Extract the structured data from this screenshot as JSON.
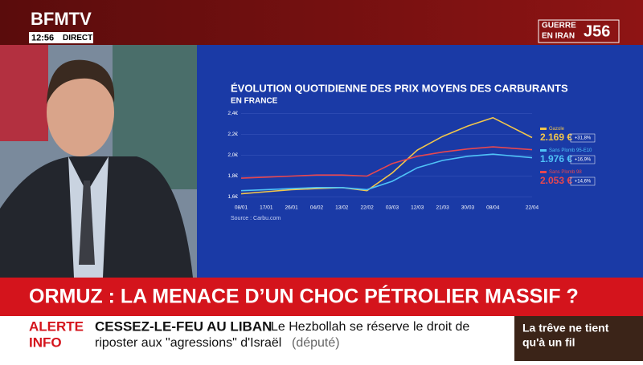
{
  "broadcast": {
    "channel": "BFMTV",
    "time": "12:56",
    "live": "DIRECT",
    "tag_line1": "GUERRE",
    "tag_line2": "EN IRAN",
    "tag_day": "J56",
    "headline": "ORMUZ : LA MENACE D’UN CHOC PÉTROLIER MASSIF ?",
    "alert_line1": "ALERTE",
    "alert_line2": "INFO",
    "ticker_title": "CESSEZ-LE-FEU AU LIBAN",
    "ticker_text1": "Le Hezbollah se réserve le droit de",
    "ticker_text2": "riposter aux \"agressions\" d'Israël",
    "ticker_source": "(député)",
    "promo_line1": "La trêve ne tient",
    "promo_line2": "qu'à un fil"
  },
  "chart_data": {
    "type": "line",
    "title": "ÉVOLUTION QUOTIDIENNE DES PRIX MOYENS DES CARBURANTS",
    "subtitle": "EN FRANCE",
    "source": "Source : Carbu.com",
    "x": [
      "08/01",
      "17/01",
      "26/01",
      "04/02",
      "13/02",
      "22/02",
      "03/03",
      "12/03",
      "21/03",
      "30/03",
      "08/04",
      "22/04"
    ],
    "ylim": [
      1.55,
      2.45
    ],
    "yticks": [
      {
        "value": 1.6,
        "label": "1,6€"
      },
      {
        "value": 1.8,
        "label": "1,8€"
      },
      {
        "value": 2.0,
        "label": "2,0€"
      },
      {
        "value": 2.2,
        "label": "2,2€"
      },
      {
        "value": 2.4,
        "label": "2,4€"
      }
    ],
    "grid": true,
    "series": [
      {
        "name": "Gazole",
        "color": "#f2c64b",
        "values": [
          1.63,
          1.65,
          1.67,
          1.68,
          1.69,
          1.66,
          1.83,
          2.05,
          2.18,
          2.28,
          2.36,
          2.169
        ],
        "value_labels": [
          null,
          null,
          null,
          null,
          null,
          null,
          null,
          null,
          null,
          null,
          null,
          "2.169 €"
        ],
        "change": "+31,8%"
      },
      {
        "name": "Sans Plomb 95-E10",
        "color": "#4fc3f7",
        "values": [
          1.66,
          1.67,
          1.68,
          1.69,
          1.69,
          1.67,
          1.75,
          1.88,
          1.95,
          1.99,
          2.01,
          1.976
        ],
        "value_labels": [
          null,
          null,
          null,
          null,
          null,
          null,
          null,
          null,
          null,
          null,
          null,
          "1.976 €"
        ],
        "change": "+16,9%"
      },
      {
        "name": "Sans Plomb 98",
        "color": "#e8474f",
        "values": [
          1.78,
          1.79,
          1.8,
          1.81,
          1.81,
          1.8,
          1.92,
          1.99,
          2.03,
          2.06,
          2.08,
          2.053
        ],
        "value_labels": [
          null,
          null,
          null,
          null,
          null,
          null,
          null,
          null,
          null,
          null,
          null,
          "2.053 €"
        ],
        "change": "+14,6%"
      }
    ]
  }
}
